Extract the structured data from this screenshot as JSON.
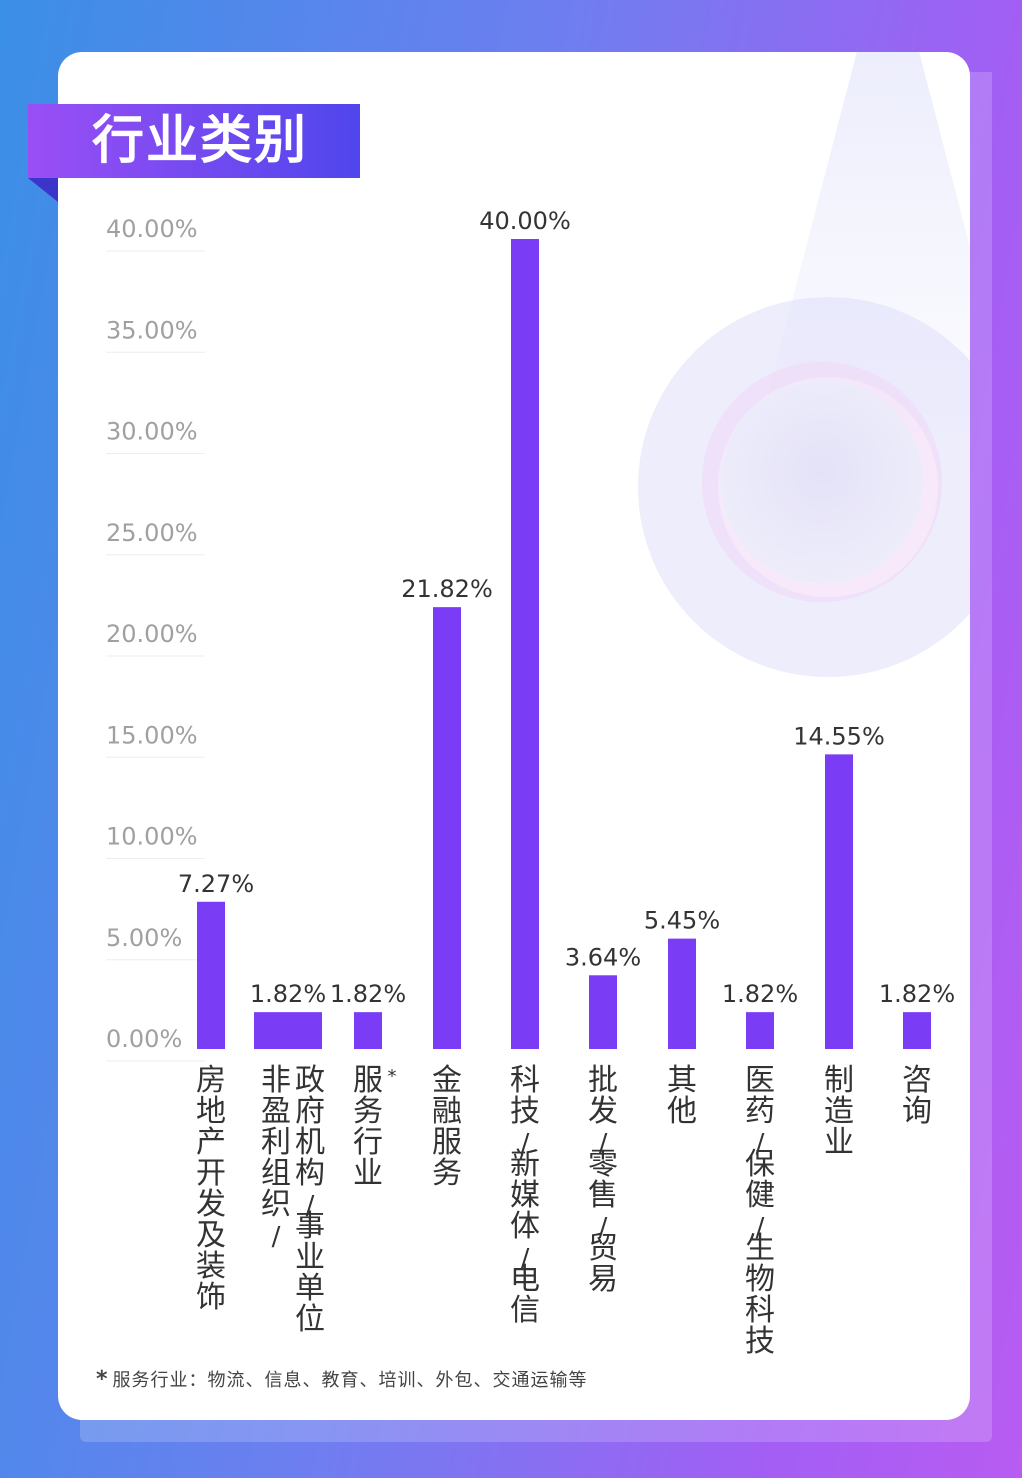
{
  "header": {
    "title": "行业类别"
  },
  "footnote": {
    "marker": "*",
    "text": "服务行业：物流、信息、教育、培训、外包、交通运输等"
  },
  "colors": {
    "bar": "#7b3cf5",
    "grid": "#eeeeee",
    "tick_text": "#a0a0a0",
    "label_text": "#333333"
  },
  "chart_data": {
    "type": "bar",
    "title": "行业类别",
    "categories": [
      "房地产开发及装饰",
      "非盈利组织/|政府机构/事业单位",
      "服务行业*",
      "金融服务",
      "科技/新媒体/电信",
      "批发/零售/贸易",
      "其他",
      "医药/保健/生物科技",
      "制造业",
      "咨询"
    ],
    "values": [
      7.27,
      1.82,
      1.82,
      21.82,
      40.0,
      3.64,
      5.45,
      1.82,
      14.55,
      1.82
    ],
    "value_labels": [
      "7.27%",
      "1.82%",
      "1.82%",
      "21.82%",
      "40.00%",
      "3.64%",
      "5.45%",
      "1.82%",
      "14.55%",
      "1.82%"
    ],
    "y_ticks": [
      "0.00%",
      "5.00%",
      "10.00%",
      "15.00%",
      "20.00%",
      "25.00%",
      "30.00%",
      "35.00%",
      "40.00%"
    ],
    "ylim": [
      0,
      40
    ],
    "grid": true
  }
}
